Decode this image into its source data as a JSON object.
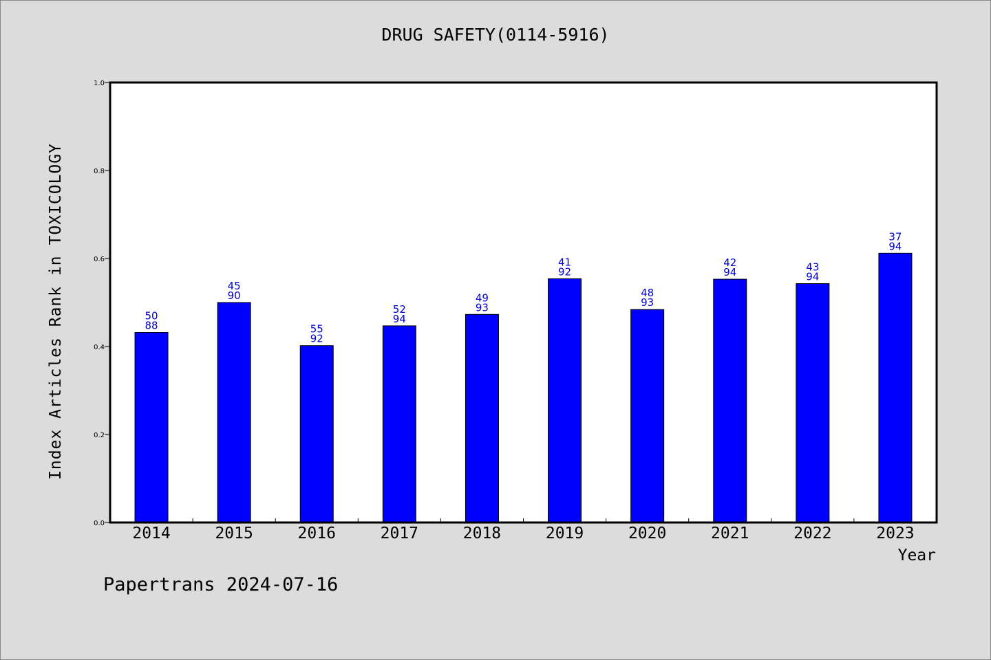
{
  "chart_data": {
    "type": "bar",
    "title": "DRUG SAFETY(0114-5916)",
    "xlabel": "Year",
    "ylabel": "Index Articles Rank in TOXICOLOGY",
    "ylim": [
      0,
      1.0
    ],
    "yticks": [
      "0.0",
      "0.2",
      "0.4",
      "0.6",
      "0.8",
      "1.0"
    ],
    "categories": [
      "2014",
      "2015",
      "2016",
      "2017",
      "2018",
      "2019",
      "2020",
      "2021",
      "2022",
      "2023"
    ],
    "values": [
      0.432,
      0.5,
      0.402,
      0.447,
      0.473,
      0.554,
      0.484,
      0.553,
      0.543,
      0.612
    ],
    "labels_top": [
      "50",
      "45",
      "55",
      "52",
      "49",
      "41",
      "48",
      "42",
      "43",
      "37"
    ],
    "labels_bottom": [
      "88",
      "90",
      "92",
      "94",
      "93",
      "92",
      "93",
      "94",
      "94",
      "94"
    ],
    "bar_color": "#0000ff",
    "label_color": "#0000cc",
    "grid": false
  },
  "footer": "Papertrans 2024-07-16"
}
